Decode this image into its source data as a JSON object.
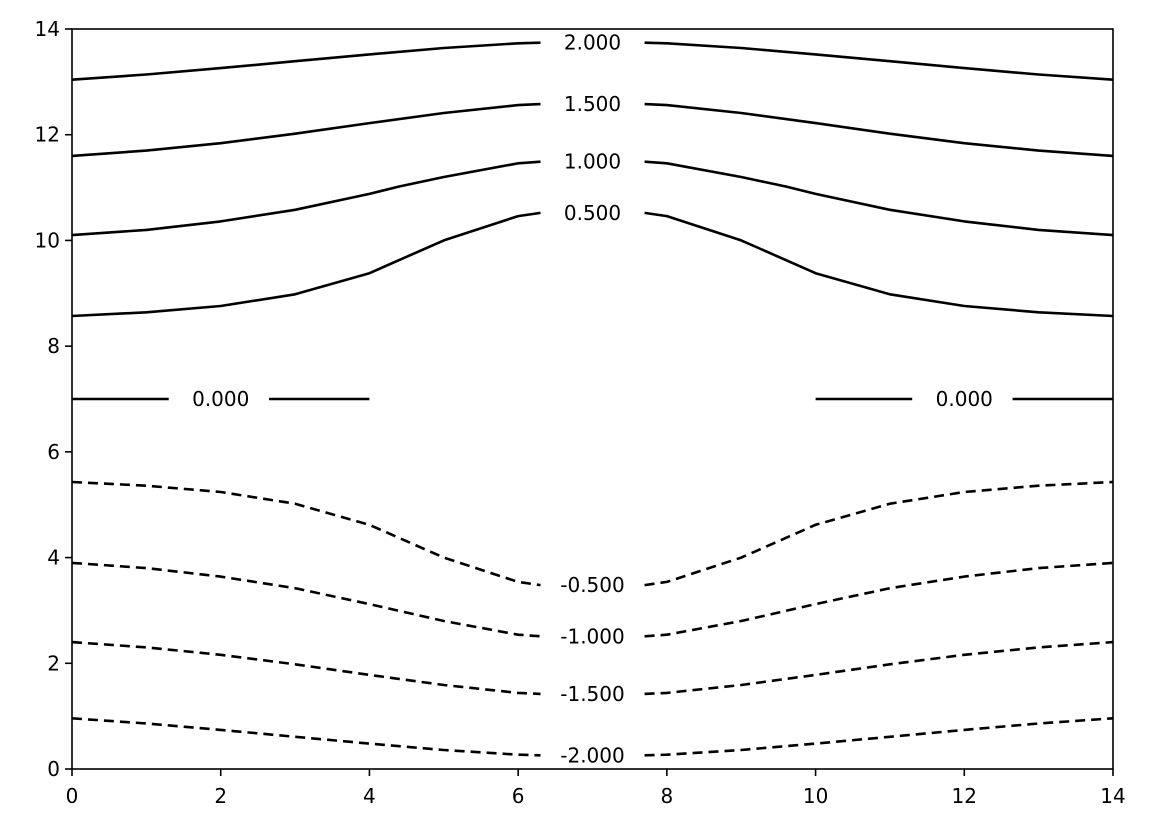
{
  "chart_data": {
    "type": "contour",
    "title": "",
    "xlabel": "",
    "ylabel": "",
    "xlim": [
      0,
      14
    ],
    "ylim": [
      0,
      14
    ],
    "xticks": [
      "0",
      "2",
      "4",
      "6",
      "8",
      "10",
      "12",
      "14"
    ],
    "yticks": [
      "0",
      "2",
      "4",
      "6",
      "8",
      "10",
      "12",
      "14"
    ],
    "line_color": "#000000",
    "negative_linestyle": "dashed",
    "levels": [
      {
        "label": "2.000",
        "dashed": false,
        "segments": [
          [
            [
              0,
              13.04
            ],
            [
              1,
              13.14
            ],
            [
              2,
              13.26
            ],
            [
              3,
              13.39
            ],
            [
              4,
              13.52
            ],
            [
              5,
              13.64
            ],
            [
              6,
              13.73
            ],
            [
              6.3,
              13.74
            ]
          ],
          [
            [
              7.7,
              13.74
            ],
            [
              8,
              13.73
            ],
            [
              9,
              13.64
            ],
            [
              10,
              13.52
            ],
            [
              11,
              13.39
            ],
            [
              12,
              13.26
            ],
            [
              13,
              13.14
            ],
            [
              14,
              13.04
            ]
          ]
        ],
        "labelpos": [
          7,
          13.74
        ]
      },
      {
        "label": "1.500",
        "dashed": false,
        "segments": [
          [
            [
              0,
              11.6
            ],
            [
              1,
              11.7
            ],
            [
              2,
              11.84
            ],
            [
              3,
              12.02
            ],
            [
              4,
              12.22
            ],
            [
              5,
              12.41
            ],
            [
              6,
              12.56
            ],
            [
              6.3,
              12.58
            ]
          ],
          [
            [
              7.7,
              12.58
            ],
            [
              8,
              12.56
            ],
            [
              9,
              12.41
            ],
            [
              10,
              12.22
            ],
            [
              11,
              12.02
            ],
            [
              12,
              11.84
            ],
            [
              13,
              11.7
            ],
            [
              14,
              11.6
            ]
          ]
        ],
        "labelpos": [
          7,
          12.58
        ]
      },
      {
        "label": "1.000",
        "dashed": false,
        "segments": [
          [
            [
              0,
              10.1
            ],
            [
              1,
              10.2
            ],
            [
              2,
              10.36
            ],
            [
              3,
              10.58
            ],
            [
              4,
              10.88
            ],
            [
              4.4,
              11.02
            ],
            [
              5,
              11.2
            ],
            [
              6,
              11.46
            ],
            [
              6.3,
              11.49
            ]
          ],
          [
            [
              7.7,
              11.49
            ],
            [
              8,
              11.46
            ],
            [
              9,
              11.2
            ],
            [
              9.6,
              11.02
            ],
            [
              10,
              10.88
            ],
            [
              11,
              10.58
            ],
            [
              12,
              10.36
            ],
            [
              13,
              10.2
            ],
            [
              14,
              10.1
            ]
          ]
        ],
        "labelpos": [
          7,
          11.49
        ]
      },
      {
        "label": "0.500",
        "dashed": false,
        "segments": [
          [
            [
              0,
              8.57
            ],
            [
              1,
              8.64
            ],
            [
              2,
              8.76
            ],
            [
              3,
              8.98
            ],
            [
              4,
              9.38
            ],
            [
              5,
              10.0
            ],
            [
              6,
              10.46
            ],
            [
              6.3,
              10.52
            ]
          ],
          [
            [
              7.7,
              10.52
            ],
            [
              8,
              10.46
            ],
            [
              9,
              10.0
            ],
            [
              10,
              9.38
            ],
            [
              11,
              8.98
            ],
            [
              12,
              8.76
            ],
            [
              13,
              8.64
            ],
            [
              14,
              8.57
            ]
          ]
        ],
        "labelpos": [
          7,
          10.52
        ]
      },
      {
        "label": "0.000",
        "dashed": false,
        "segments": [
          [
            [
              0,
              7.0
            ],
            [
              1.3,
              7.0
            ]
          ],
          [
            [
              2.65,
              7.0
            ],
            [
              4,
              7.0
            ]
          ],
          [
            [
              10,
              7.0
            ],
            [
              11.3,
              7.0
            ]
          ],
          [
            [
              12.65,
              7.0
            ],
            [
              14,
              7.0
            ]
          ]
        ],
        "labelpos": [
          2,
          7.0
        ],
        "labelpos2": [
          12,
          7.0
        ]
      },
      {
        "label": "-0.500",
        "dashed": true,
        "segments": [
          [
            [
              0,
              5.43
            ],
            [
              1,
              5.36
            ],
            [
              2,
              5.24
            ],
            [
              3,
              5.02
            ],
            [
              4,
              4.62
            ],
            [
              5,
              4.0
            ],
            [
              6,
              3.54
            ],
            [
              6.3,
              3.48
            ]
          ],
          [
            [
              7.7,
              3.48
            ],
            [
              8,
              3.54
            ],
            [
              9,
              4.0
            ],
            [
              10,
              4.62
            ],
            [
              11,
              5.02
            ],
            [
              12,
              5.24
            ],
            [
              13,
              5.36
            ],
            [
              14,
              5.43
            ]
          ]
        ],
        "labelpos": [
          7,
          3.48
        ]
      },
      {
        "label": "-1.000",
        "dashed": true,
        "segments": [
          [
            [
              0,
              3.9
            ],
            [
              1,
              3.8
            ],
            [
              2,
              3.64
            ],
            [
              3,
              3.42
            ],
            [
              4,
              3.12
            ],
            [
              5,
              2.8
            ],
            [
              6,
              2.54
            ],
            [
              6.3,
              2.51
            ]
          ],
          [
            [
              7.7,
              2.51
            ],
            [
              8,
              2.54
            ],
            [
              9,
              2.8
            ],
            [
              10,
              3.12
            ],
            [
              11,
              3.42
            ],
            [
              12,
              3.64
            ],
            [
              13,
              3.8
            ],
            [
              14,
              3.9
            ]
          ]
        ],
        "labelpos": [
          7,
          2.51
        ]
      },
      {
        "label": "-1.500",
        "dashed": true,
        "segments": [
          [
            [
              0,
              2.4
            ],
            [
              1,
              2.3
            ],
            [
              2,
              2.16
            ],
            [
              3,
              1.98
            ],
            [
              4,
              1.78
            ],
            [
              5,
              1.59
            ],
            [
              6,
              1.44
            ],
            [
              6.3,
              1.42
            ]
          ],
          [
            [
              7.7,
              1.42
            ],
            [
              8,
              1.44
            ],
            [
              9,
              1.59
            ],
            [
              10,
              1.78
            ],
            [
              11,
              1.98
            ],
            [
              12,
              2.16
            ],
            [
              13,
              2.3
            ],
            [
              14,
              2.4
            ]
          ]
        ],
        "labelpos": [
          7,
          1.42
        ]
      },
      {
        "label": "-2.000",
        "dashed": true,
        "segments": [
          [
            [
              0,
              0.96
            ],
            [
              1,
              0.86
            ],
            [
              2,
              0.74
            ],
            [
              3,
              0.61
            ],
            [
              4,
              0.48
            ],
            [
              5,
              0.36
            ],
            [
              6,
              0.27
            ],
            [
              6.3,
              0.26
            ]
          ],
          [
            [
              7.7,
              0.26
            ],
            [
              8,
              0.27
            ],
            [
              9,
              0.36
            ],
            [
              10,
              0.48
            ],
            [
              11,
              0.61
            ],
            [
              12,
              0.74
            ],
            [
              13,
              0.86
            ],
            [
              14,
              0.96
            ]
          ]
        ],
        "labelpos": [
          7,
          0.26
        ]
      }
    ]
  }
}
